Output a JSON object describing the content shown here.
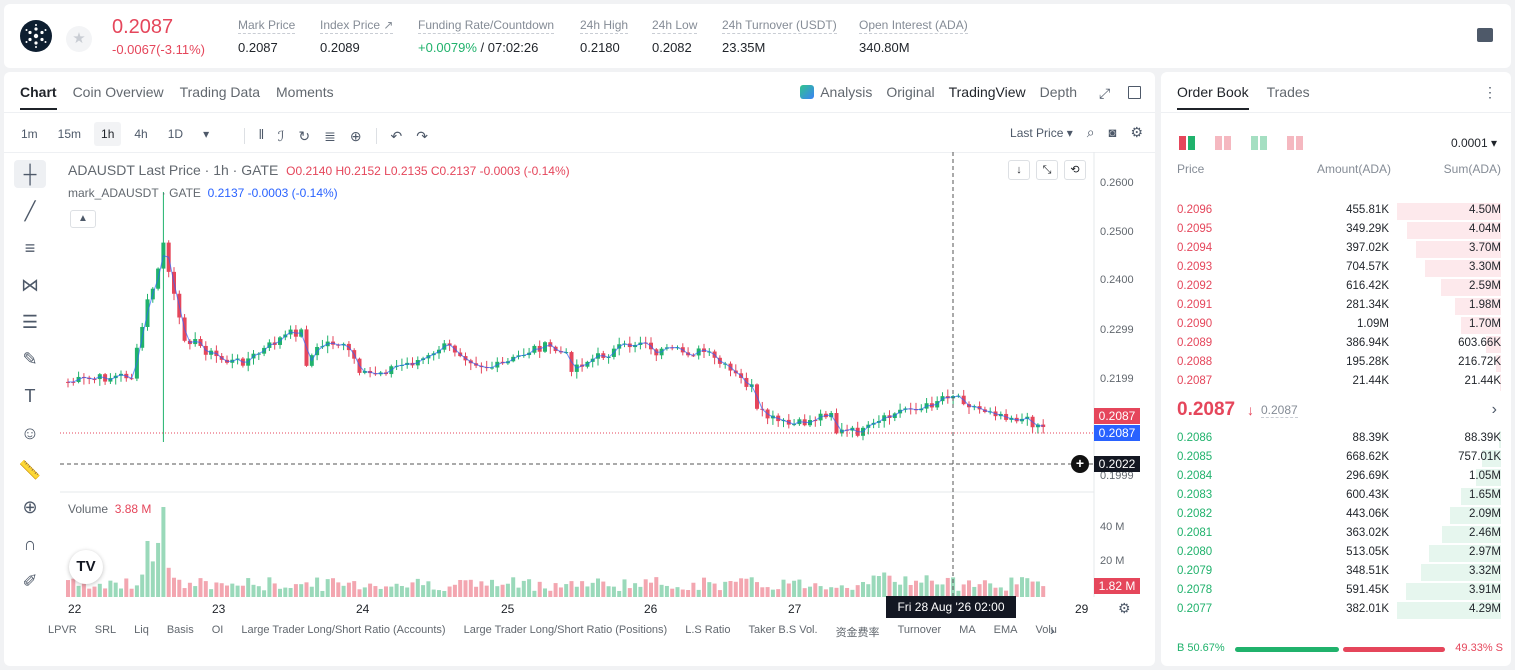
{
  "ticker": {
    "last_price": "0.2087",
    "change": "-0.0067(-3.11%)",
    "stats": [
      {
        "label": "Mark Price",
        "value": "0.2087"
      },
      {
        "label": "Index Price ↗",
        "value": "0.2089"
      },
      {
        "label": "Funding Rate/Countdown",
        "value_green": "+0.0079%",
        "value": " / 07:02:26"
      },
      {
        "label": "24h High",
        "value": "0.2180"
      },
      {
        "label": "24h Low",
        "value": "0.2082"
      },
      {
        "label": "24h Turnover (USDT)",
        "value": "23.35M"
      },
      {
        "label": "Open Interest (ADA)",
        "value": "340.80M"
      }
    ]
  },
  "chart_tabs": [
    "Chart",
    "Coin Overview",
    "Trading Data",
    "Moments"
  ],
  "view_tabs": [
    "Analysis",
    "Original",
    "TradingView",
    "Depth"
  ],
  "timeframes": [
    "1m",
    "15m",
    "1h",
    "4h",
    "1D"
  ],
  "price_type": "Last Price",
  "legend": {
    "symbol": "ADAUSDT Last Price · 1h · GATE",
    "ohlc": "O0.2140  H0.2152  L0.2135  C0.2137  -0.0003  (-0.14%)",
    "mark_label": "mark_ADAUSDT · GATE",
    "mark_values": "0.2137  -0.0003  (-0.14%)",
    "volume_label": "Volume",
    "volume_value": "3.88 M"
  },
  "badges": {
    "last": "0.2087",
    "mark": "0.2087",
    "cross": "0.2022",
    "vol": "1.82 M"
  },
  "tooltip_date": "Fri 28 Aug '26   02:00",
  "indicators": [
    "LPVR",
    "SRL",
    "Liq",
    "Basis",
    "OI",
    "Large Trader Long/Short Ratio (Accounts)",
    "Large Trader Long/Short Ratio (Positions)",
    "L.S Ratio",
    "Taker B.S Vol.",
    "资金费率",
    "Turnover",
    "MA",
    "EMA",
    "Volu"
  ],
  "chart_data": {
    "type": "candlestick",
    "x_ticks": [
      "22",
      "23",
      "24",
      "25",
      "26",
      "27",
      "29"
    ],
    "y_ticks": [
      "0.2600",
      "0.2500",
      "0.2400",
      "0.2299",
      "0.2199",
      "0.1999"
    ],
    "vol_ticks": [
      "40 M",
      "20 M"
    ],
    "up_color": "#20b26c",
    "down_color": "#e5465b"
  },
  "book": {
    "tabs": [
      "Order Book",
      "Trades"
    ],
    "precision": "0.0001",
    "headers": [
      "Price",
      "Amount(ADA)",
      "Sum(ADA)"
    ],
    "asks": [
      {
        "p": "0.2096",
        "a": "455.81K",
        "s": "4.50M",
        "w": 1.0
      },
      {
        "p": "0.2095",
        "a": "349.29K",
        "s": "4.04M",
        "w": 0.9
      },
      {
        "p": "0.2094",
        "a": "397.02K",
        "s": "3.70M",
        "w": 0.82
      },
      {
        "p": "0.2093",
        "a": "704.57K",
        "s": "3.30M",
        "w": 0.73
      },
      {
        "p": "0.2092",
        "a": "616.42K",
        "s": "2.59M",
        "w": 0.58
      },
      {
        "p": "0.2091",
        "a": "281.34K",
        "s": "1.98M",
        "w": 0.44
      },
      {
        "p": "0.2090",
        "a": "1.09M",
        "s": "1.70M",
        "w": 0.38
      },
      {
        "p": "0.2089",
        "a": "386.94K",
        "s": "603.66K",
        "w": 0.14
      },
      {
        "p": "0.2088",
        "a": "195.28K",
        "s": "216.72K",
        "w": 0.05
      },
      {
        "p": "0.2087",
        "a": "21.44K",
        "s": "21.44K",
        "w": 0.01
      }
    ],
    "mid_price": "0.2087",
    "mid_mark": "0.2087",
    "bids": [
      {
        "p": "0.2086",
        "a": "88.39K",
        "s": "88.39K",
        "w": 0.02
      },
      {
        "p": "0.2085",
        "a": "668.62K",
        "s": "757.01K",
        "w": 0.18
      },
      {
        "p": "0.2084",
        "a": "296.69K",
        "s": "1.05M",
        "w": 0.24
      },
      {
        "p": "0.2083",
        "a": "600.43K",
        "s": "1.65M",
        "w": 0.38
      },
      {
        "p": "0.2082",
        "a": "443.06K",
        "s": "2.09M",
        "w": 0.49
      },
      {
        "p": "0.2081",
        "a": "363.02K",
        "s": "2.46M",
        "w": 0.57
      },
      {
        "p": "0.2080",
        "a": "513.05K",
        "s": "2.97M",
        "w": 0.69
      },
      {
        "p": "0.2079",
        "a": "348.51K",
        "s": "3.32M",
        "w": 0.77
      },
      {
        "p": "0.2078",
        "a": "591.45K",
        "s": "3.91M",
        "w": 0.91
      },
      {
        "p": "0.2077",
        "a": "382.01K",
        "s": "4.29M",
        "w": 1.0
      }
    ],
    "buy_pct": "B 50.67%",
    "sell_pct": "49.33% S"
  }
}
